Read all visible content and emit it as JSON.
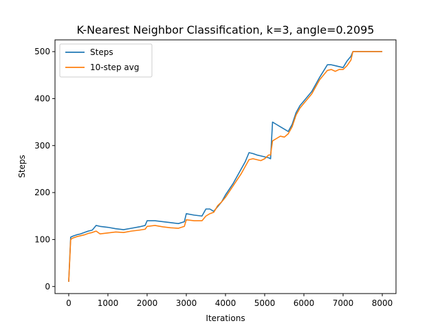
{
  "chart_data": {
    "type": "line",
    "title": "K-Nearest Neighbor Classification, k=3, angle=0.2095",
    "xlabel": "Iterations",
    "ylabel": "Steps",
    "xlim": [
      -350,
      8350
    ],
    "ylim": [
      -15,
      525
    ],
    "x_ticks": [
      0,
      1000,
      2000,
      3000,
      4000,
      5000,
      6000,
      7000,
      8000
    ],
    "y_ticks": [
      0,
      100,
      200,
      300,
      400,
      500
    ],
    "legend_position": "upper-left",
    "series": [
      {
        "name": "Steps",
        "color": "#1f77b4",
        "x": [
          0,
          50,
          100,
          200,
          300,
          400,
          500,
          600,
          700,
          800,
          1000,
          1200,
          1400,
          1600,
          1800,
          1950,
          2000,
          2200,
          2400,
          2600,
          2800,
          2950,
          3000,
          3200,
          3400,
          3500,
          3600,
          3700,
          3800,
          3900,
          4000,
          4200,
          4400,
          4500,
          4600,
          4700,
          4800,
          4900,
          5000,
          5100,
          5150,
          5200,
          5300,
          5400,
          5500,
          5600,
          5700,
          5800,
          5900,
          6000,
          6200,
          6400,
          6600,
          6700,
          6800,
          6900,
          7000,
          7100,
          7200,
          7250,
          7300,
          7600,
          8000
        ],
        "values": [
          10,
          105,
          107,
          110,
          112,
          115,
          118,
          120,
          130,
          128,
          126,
          123,
          121,
          124,
          127,
          130,
          140,
          140,
          138,
          136,
          134,
          138,
          155,
          152,
          150,
          165,
          165,
          160,
          170,
          180,
          195,
          220,
          250,
          265,
          285,
          283,
          280,
          278,
          276,
          274,
          272,
          350,
          345,
          340,
          335,
          330,
          345,
          370,
          385,
          395,
          415,
          445,
          472,
          472,
          470,
          468,
          466,
          480,
          490,
          500,
          500,
          500,
          500
        ]
      },
      {
        "name": "10-step avg",
        "color": "#ff7f0e",
        "x": [
          0,
          50,
          100,
          200,
          300,
          400,
          500,
          600,
          700,
          800,
          1000,
          1200,
          1400,
          1600,
          1800,
          1950,
          2000,
          2200,
          2400,
          2600,
          2800,
          2950,
          3000,
          3200,
          3400,
          3500,
          3600,
          3700,
          3800,
          3900,
          4000,
          4200,
          4400,
          4500,
          4600,
          4700,
          4800,
          4900,
          5000,
          5100,
          5150,
          5200,
          5300,
          5400,
          5500,
          5600,
          5700,
          5800,
          5900,
          6000,
          6200,
          6400,
          6600,
          6700,
          6800,
          6900,
          7000,
          7100,
          7200,
          7250,
          7300,
          7600,
          8000
        ],
        "values": [
          10,
          100,
          103,
          106,
          108,
          110,
          113,
          115,
          118,
          112,
          114,
          116,
          115,
          118,
          120,
          122,
          128,
          130,
          127,
          125,
          124,
          128,
          142,
          140,
          140,
          150,
          155,
          158,
          172,
          180,
          190,
          215,
          240,
          255,
          270,
          272,
          270,
          268,
          272,
          280,
          280,
          310,
          315,
          320,
          318,
          325,
          340,
          365,
          380,
          390,
          410,
          440,
          460,
          462,
          458,
          462,
          462,
          470,
          482,
          500,
          500,
          500,
          500
        ]
      }
    ]
  }
}
